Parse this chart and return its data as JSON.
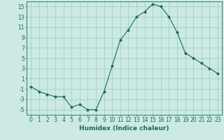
{
  "x": [
    0,
    1,
    2,
    3,
    4,
    5,
    6,
    7,
    8,
    9,
    10,
    11,
    12,
    13,
    14,
    15,
    16,
    17,
    18,
    19,
    20,
    21,
    22,
    23
  ],
  "y": [
    -0.5,
    -1.5,
    -2.0,
    -2.5,
    -2.5,
    -4.5,
    -4.0,
    -5.0,
    -5.0,
    -1.5,
    3.5,
    8.5,
    10.5,
    13.0,
    14.0,
    15.5,
    15.0,
    13.0,
    10.0,
    6.0,
    5.0,
    4.0,
    3.0,
    2.0
  ],
  "line_color": "#1a6b5a",
  "marker": "D",
  "marker_size": 2,
  "bg_color": "#cce9e4",
  "grid_color": "#99ccc4",
  "xlabel": "Humidex (Indice chaleur)",
  "yticks": [
    -5,
    -3,
    -1,
    1,
    3,
    5,
    7,
    9,
    11,
    13,
    15
  ],
  "xticks": [
    0,
    1,
    2,
    3,
    4,
    5,
    6,
    7,
    8,
    9,
    10,
    11,
    12,
    13,
    14,
    15,
    16,
    17,
    18,
    19,
    20,
    21,
    22,
    23
  ],
  "ylim": [
    -6,
    16
  ],
  "xlim": [
    -0.5,
    23.5
  ],
  "xlabel_fontsize": 6.5,
  "tick_fontsize": 5.5,
  "linewidth": 0.8
}
